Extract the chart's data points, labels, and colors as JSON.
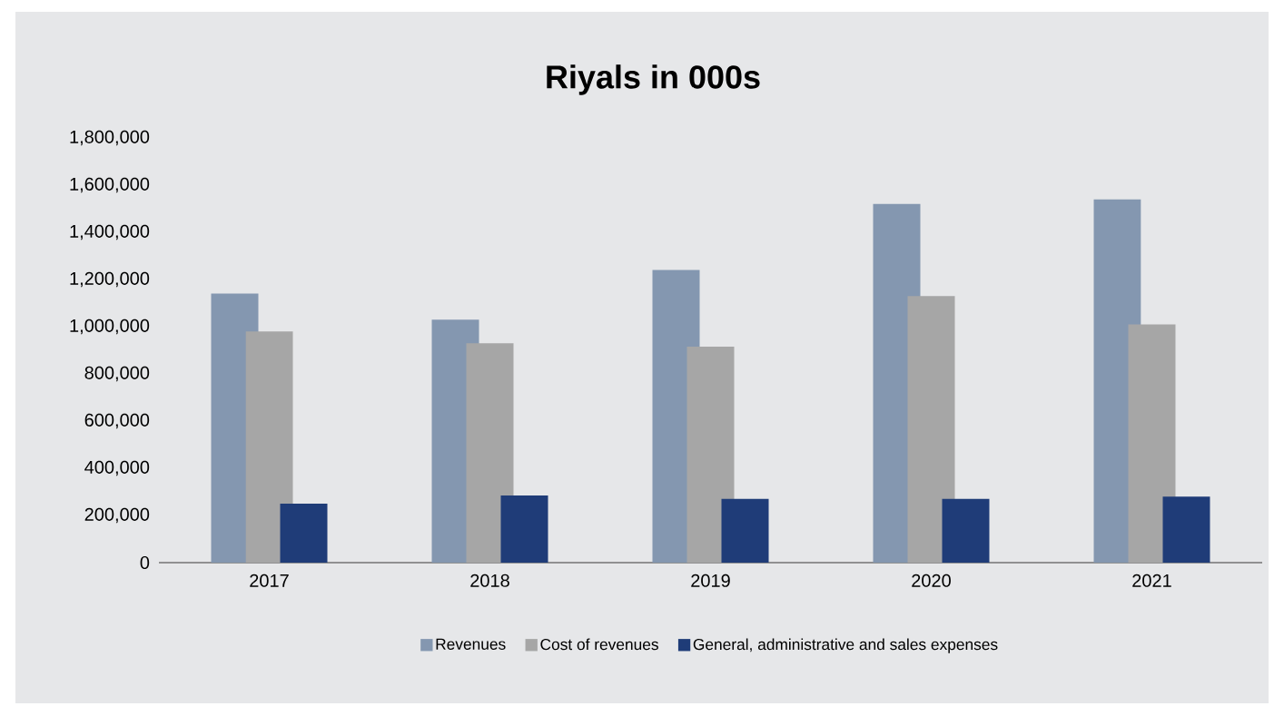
{
  "chart_data": {
    "type": "bar",
    "title": "Riyals in 000s",
    "categories": [
      "2017",
      "2018",
      "2019",
      "2020",
      "2021"
    ],
    "series": [
      {
        "name": "Revenues",
        "color": "#8497b0",
        "values": [
          1140000,
          1030000,
          1240000,
          1520000,
          1540000
        ]
      },
      {
        "name": "Cost of revenues",
        "color": "#a6a6a6",
        "values": [
          980000,
          930000,
          915000,
          1130000,
          1010000
        ]
      },
      {
        "name": "General, administrative and sales expenses",
        "color": "#1f3c78",
        "values": [
          250000,
          285000,
          270000,
          270000,
          280000
        ]
      }
    ],
    "ylim": [
      0,
      1800000
    ],
    "yticks": [
      {
        "value": 0,
        "label": "0"
      },
      {
        "value": 200000,
        "label": "200,000"
      },
      {
        "value": 400000,
        "label": "400,000"
      },
      {
        "value": 600000,
        "label": "600,000"
      },
      {
        "value": 800000,
        "label": "800,000"
      },
      {
        "value": 1000000,
        "label": "1,000,000"
      },
      {
        "value": 1200000,
        "label": "1,200,000"
      },
      {
        "value": 1400000,
        "label": "1,400,000"
      },
      {
        "value": 1600000,
        "label": "1,600,000"
      },
      {
        "value": 1800000,
        "label": "1,800,000"
      }
    ],
    "grid": false,
    "legend": "bottom"
  }
}
